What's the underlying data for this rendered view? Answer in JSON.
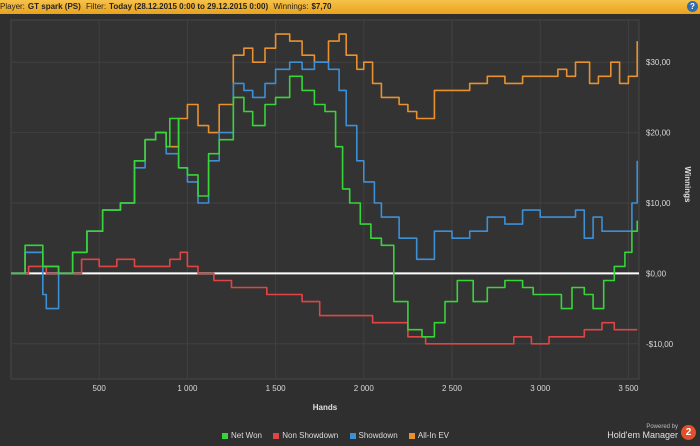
{
  "header": {
    "player_label": "Player:",
    "player_value": "GT spark (PS)",
    "filter_label": "Filter:",
    "filter_value": "Today (28.12.2015 0:00 to 29.12.2015 0:00)",
    "winnings_label": "Winnings:",
    "winnings_value": "$7,70",
    "help_glyph": "?"
  },
  "legend": [
    {
      "label": "Net Won",
      "color": "#37d43a"
    },
    {
      "label": "Non Showdown",
      "color": "#e04545"
    },
    {
      "label": "Showdown",
      "color": "#3d8fd6"
    },
    {
      "label": "All-In EV",
      "color": "#e8912e"
    }
  ],
  "powered": {
    "line1": "Powered by",
    "line2": "Hold'em Manager",
    "badge": "2"
  },
  "chart_data": {
    "type": "line",
    "xlabel": "Hands",
    "ylabel": "Winnings",
    "xlim": [
      0,
      3560
    ],
    "ylim": [
      -15,
      36
    ],
    "x_ticks": [
      {
        "value": 500,
        "label": "500"
      },
      {
        "value": 1000,
        "label": "1 000"
      },
      {
        "value": 1500,
        "label": "1 500"
      },
      {
        "value": 2000,
        "label": "2 000"
      },
      {
        "value": 2500,
        "label": "2 500"
      },
      {
        "value": 3000,
        "label": "3 000"
      },
      {
        "value": 3500,
        "label": "3 500"
      }
    ],
    "y_ticks": [
      {
        "value": 30,
        "label": "$30,00"
      },
      {
        "value": 20,
        "label": "$20,00"
      },
      {
        "value": 10,
        "label": "$10,00"
      },
      {
        "value": 0,
        "label": "$0,00"
      },
      {
        "value": -10,
        "label": "-$10,00"
      }
    ],
    "grid": true,
    "legend_position": "bottom",
    "series": [
      {
        "name": "Net Won",
        "color": "#37d43a",
        "x": [
          0,
          80,
          180,
          270,
          350,
          430,
          520,
          620,
          700,
          760,
          820,
          880,
          900,
          950,
          1000,
          1060,
          1120,
          1180,
          1260,
          1320,
          1370,
          1440,
          1500,
          1580,
          1650,
          1720,
          1780,
          1840,
          1880,
          1920,
          1980,
          2040,
          2100,
          2170,
          2250,
          2330,
          2400,
          2460,
          2530,
          2620,
          2700,
          2800,
          2900,
          2960,
          3040,
          3120,
          3180,
          3250,
          3300,
          3360,
          3420,
          3480,
          3520,
          3550
        ],
        "y": [
          0,
          4,
          1,
          0,
          3,
          6,
          9,
          10,
          16,
          19,
          20,
          18,
          22,
          15,
          14,
          11,
          17,
          19,
          25,
          23,
          21,
          24,
          25,
          28,
          26,
          24,
          23,
          18,
          12,
          10,
          7,
          5,
          4,
          -4,
          -8,
          -9,
          -7,
          -4,
          -1,
          -4,
          -2,
          -1,
          -2,
          -3,
          -3,
          -5,
          -2,
          -3,
          -5,
          -1,
          1,
          3,
          6,
          7.5
        ]
      },
      {
        "name": "Non Showdown",
        "color": "#e04545",
        "x": [
          0,
          100,
          200,
          300,
          400,
          500,
          600,
          700,
          800,
          900,
          960,
          1000,
          1060,
          1150,
          1250,
          1350,
          1450,
          1550,
          1650,
          1750,
          1850,
          1950,
          2050,
          2150,
          2250,
          2350,
          2450,
          2550,
          2650,
          2750,
          2850,
          2950,
          3050,
          3150,
          3250,
          3350,
          3420,
          3480,
          3550
        ],
        "y": [
          0,
          1,
          0,
          0,
          2,
          1,
          2,
          1,
          1,
          2,
          3,
          1,
          0,
          -1,
          -2,
          -2,
          -3,
          -3,
          -4,
          -6,
          -6,
          -6,
          -7,
          -7,
          -9,
          -10,
          -10,
          -10,
          -10,
          -10,
          -9,
          -10,
          -9,
          -9,
          -8,
          -7,
          -8,
          -8,
          -8
        ]
      },
      {
        "name": "Showdown",
        "color": "#3d8fd6",
        "x": [
          0,
          80,
          180,
          200,
          270,
          350,
          430,
          520,
          620,
          700,
          760,
          820,
          880,
          950,
          1000,
          1060,
          1120,
          1180,
          1260,
          1320,
          1370,
          1440,
          1500,
          1580,
          1650,
          1720,
          1800,
          1860,
          1900,
          1960,
          2000,
          2060,
          2100,
          2200,
          2300,
          2400,
          2500,
          2600,
          2700,
          2800,
          2900,
          3000,
          3100,
          3200,
          3250,
          3300,
          3350,
          3450,
          3520,
          3550
        ],
        "y": [
          0,
          3,
          -3,
          -5,
          0,
          3,
          6,
          9,
          10,
          15,
          19,
          20,
          17,
          15,
          13,
          10,
          16,
          20,
          27,
          26,
          25,
          27,
          29,
          30,
          29,
          30,
          29,
          26,
          21,
          16,
          13,
          10,
          8,
          5,
          2,
          6,
          5,
          6,
          8,
          7,
          9,
          8,
          8,
          9,
          5,
          8,
          6,
          6,
          10,
          16
        ]
      },
      {
        "name": "All-In EV",
        "color": "#e8912e",
        "x": [
          0,
          80,
          180,
          270,
          350,
          430,
          520,
          620,
          700,
          760,
          820,
          880,
          950,
          1000,
          1060,
          1120,
          1180,
          1260,
          1320,
          1370,
          1440,
          1500,
          1580,
          1650,
          1720,
          1800,
          1860,
          1900,
          1960,
          2000,
          2050,
          2100,
          2200,
          2250,
          2300,
          2400,
          2500,
          2600,
          2700,
          2800,
          2900,
          3000,
          3100,
          3150,
          3200,
          3280,
          3330,
          3400,
          3450,
          3500,
          3550
        ],
        "y": [
          0,
          3,
          1,
          0,
          3,
          6,
          9,
          10,
          16,
          19,
          20,
          18,
          22,
          24,
          21,
          20,
          24,
          31,
          32,
          30,
          32,
          34,
          33,
          31,
          30,
          33,
          34,
          31,
          29,
          30,
          27,
          25,
          24,
          23,
          22,
          26,
          26,
          27,
          28,
          27,
          28,
          28,
          29,
          28,
          30,
          27,
          28,
          30,
          27,
          28,
          33
        ]
      }
    ]
  }
}
